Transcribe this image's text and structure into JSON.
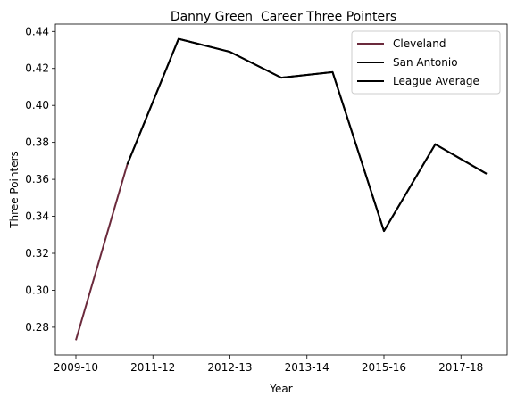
{
  "chart_data": {
    "type": "line",
    "title": "Danny Green  Career Three Pointers",
    "xlabel": "Year",
    "ylabel": "Three Pointers",
    "x_tick_labels": [
      "2009-10",
      "2011-12",
      "2012-13",
      "2013-14",
      "2015-16",
      "2017-18"
    ],
    "x_tick_positions": [
      0,
      1.5,
      3,
      4.5,
      6,
      7.5
    ],
    "xlim": [
      -0.4,
      8.4
    ],
    "ylim": [
      0.265,
      0.444
    ],
    "y_ticks": [
      0.28,
      0.3,
      0.32,
      0.34,
      0.36,
      0.38,
      0.4,
      0.42,
      0.44
    ],
    "y_tick_labels": [
      "0.28",
      "0.30",
      "0.32",
      "0.34",
      "0.36",
      "0.38",
      "0.40",
      "0.42",
      "0.44"
    ],
    "series": [
      {
        "name": "Cleveland",
        "color": "#6b2a3c",
        "x": [
          0,
          1
        ],
        "y": [
          0.273,
          0.368
        ]
      },
      {
        "name": "San Antonio",
        "color": "#000000",
        "x": [
          1,
          2,
          3,
          4,
          5,
          6,
          7,
          8
        ],
        "y": [
          0.368,
          0.436,
          0.429,
          0.415,
          0.418,
          0.332,
          0.379,
          0.363
        ]
      },
      {
        "name": "League Average",
        "color": "#000000",
        "x": [
          1,
          2,
          3,
          4,
          5,
          6,
          7,
          8
        ],
        "y": [
          0.368,
          0.436,
          0.429,
          0.415,
          0.418,
          0.332,
          0.379,
          0.363
        ]
      }
    ],
    "legend_position": "upper-right",
    "grid": false
  }
}
